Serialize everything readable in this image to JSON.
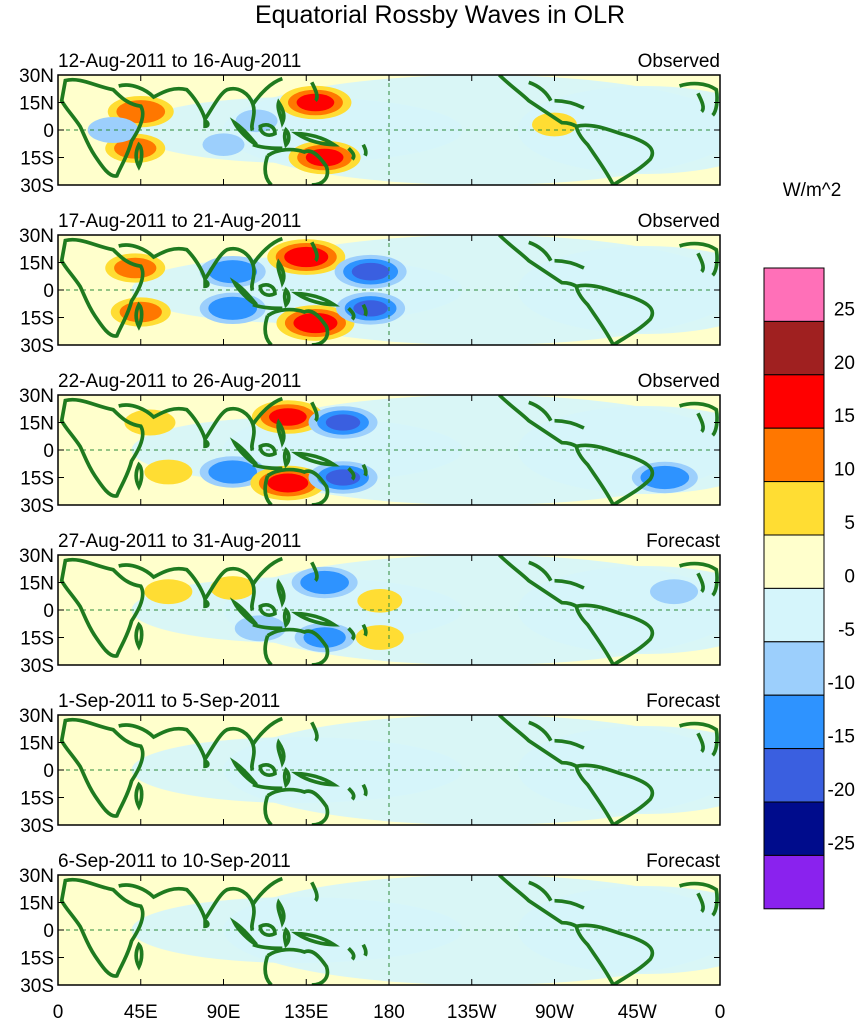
{
  "chart_data": {
    "type": "heatmap",
    "title": "Equatorial Rossby Waves in OLR",
    "units": "W/m^2",
    "lat_labels": [
      "30N",
      "15N",
      "0",
      "15S",
      "30S"
    ],
    "lat_values": [
      30,
      15,
      0,
      -15,
      -30
    ],
    "lon_labels": [
      "0",
      "45E",
      "90E",
      "135E",
      "180",
      "135W",
      "90W",
      "45W",
      "0"
    ],
    "lon_values": [
      0,
      45,
      90,
      135,
      180,
      225,
      270,
      315,
      360
    ],
    "colorbar": {
      "levels": [
        25,
        20,
        15,
        10,
        5,
        0,
        -5,
        -10,
        -15,
        -20,
        -25
      ],
      "labels": [
        "25",
        "20",
        "15",
        "10",
        "5",
        "0",
        "-5",
        "-10",
        "-15",
        "-20",
        "-25"
      ],
      "colors": [
        "#ff70b8",
        "#a02020",
        "#ff0000",
        "#ff7700",
        "#ffdd33",
        "#ffffcc",
        "#d5f5fb",
        "#9ccffc",
        "#2e93ff",
        "#3a5fe0",
        "#000c8c",
        "#8a22ee"
      ]
    },
    "panels": [
      {
        "period": "12-Aug-2011 to 16-Aug-2011",
        "status": "Observed",
        "anomalies": [
          {
            "lon": 45,
            "lat": 10,
            "value": 14
          },
          {
            "lon": 42,
            "lat": -10,
            "value": 12
          },
          {
            "lon": 108,
            "lat": 5,
            "value": -6
          },
          {
            "lon": 90,
            "lat": -8,
            "value": -6
          },
          {
            "lon": 140,
            "lat": 15,
            "value": 16
          },
          {
            "lon": 145,
            "lat": -15,
            "value": 16
          },
          {
            "lon": 30,
            "lat": 0,
            "value": -9
          },
          {
            "lon": 270,
            "lat": 3,
            "value": 7
          }
        ]
      },
      {
        "period": "17-Aug-2011 to 21-Aug-2011",
        "status": "Observed",
        "anomalies": [
          {
            "lon": 42,
            "lat": 12,
            "value": 12
          },
          {
            "lon": 45,
            "lat": -12,
            "value": 12
          },
          {
            "lon": 95,
            "lat": 10,
            "value": -14
          },
          {
            "lon": 95,
            "lat": -10,
            "value": -14
          },
          {
            "lon": 135,
            "lat": 18,
            "value": 18
          },
          {
            "lon": 140,
            "lat": -18,
            "value": 18
          },
          {
            "lon": 170,
            "lat": 10,
            "value": -16
          },
          {
            "lon": 170,
            "lat": -10,
            "value": -15
          }
        ]
      },
      {
        "period": "22-Aug-2011 to 26-Aug-2011",
        "status": "Observed",
        "anomalies": [
          {
            "lon": 50,
            "lat": 15,
            "value": 9
          },
          {
            "lon": 60,
            "lat": -12,
            "value": 8
          },
          {
            "lon": 95,
            "lat": -12,
            "value": -14
          },
          {
            "lon": 125,
            "lat": 18,
            "value": 16
          },
          {
            "lon": 125,
            "lat": -18,
            "value": 17
          },
          {
            "lon": 155,
            "lat": 15,
            "value": -15
          },
          {
            "lon": 155,
            "lat": -15,
            "value": -15
          },
          {
            "lon": 330,
            "lat": -15,
            "value": -14
          }
        ]
      },
      {
        "period": "27-Aug-2011 to 31-Aug-2011",
        "status": "Forecast",
        "anomalies": [
          {
            "lon": 60,
            "lat": 10,
            "value": 8
          },
          {
            "lon": 95,
            "lat": 12,
            "value": 7
          },
          {
            "lon": 110,
            "lat": -10,
            "value": -9
          },
          {
            "lon": 145,
            "lat": 15,
            "value": -14
          },
          {
            "lon": 145,
            "lat": -15,
            "value": -12
          },
          {
            "lon": 175,
            "lat": 5,
            "value": 7
          },
          {
            "lon": 175,
            "lat": -15,
            "value": 8
          },
          {
            "lon": 335,
            "lat": 10,
            "value": -8
          }
        ]
      },
      {
        "period": "1-Sep-2011 to 5-Sep-2011",
        "status": "Forecast",
        "anomalies": [
          {
            "lon": 100,
            "lat": 10,
            "value": 3
          },
          {
            "lon": 130,
            "lat": -10,
            "value": 3
          },
          {
            "lon": 200,
            "lat": 0,
            "value": -3
          },
          {
            "lon": 300,
            "lat": 10,
            "value": 2
          }
        ]
      },
      {
        "period": "6-Sep-2011 to 10-Sep-2011",
        "status": "Forecast",
        "anomalies": [
          {
            "lon": 150,
            "lat": 15,
            "value": 2
          },
          {
            "lon": 110,
            "lat": -5,
            "value": 2
          },
          {
            "lon": 230,
            "lat": -10,
            "value": -2
          },
          {
            "lon": 320,
            "lat": 10,
            "value": -2
          }
        ]
      }
    ]
  }
}
